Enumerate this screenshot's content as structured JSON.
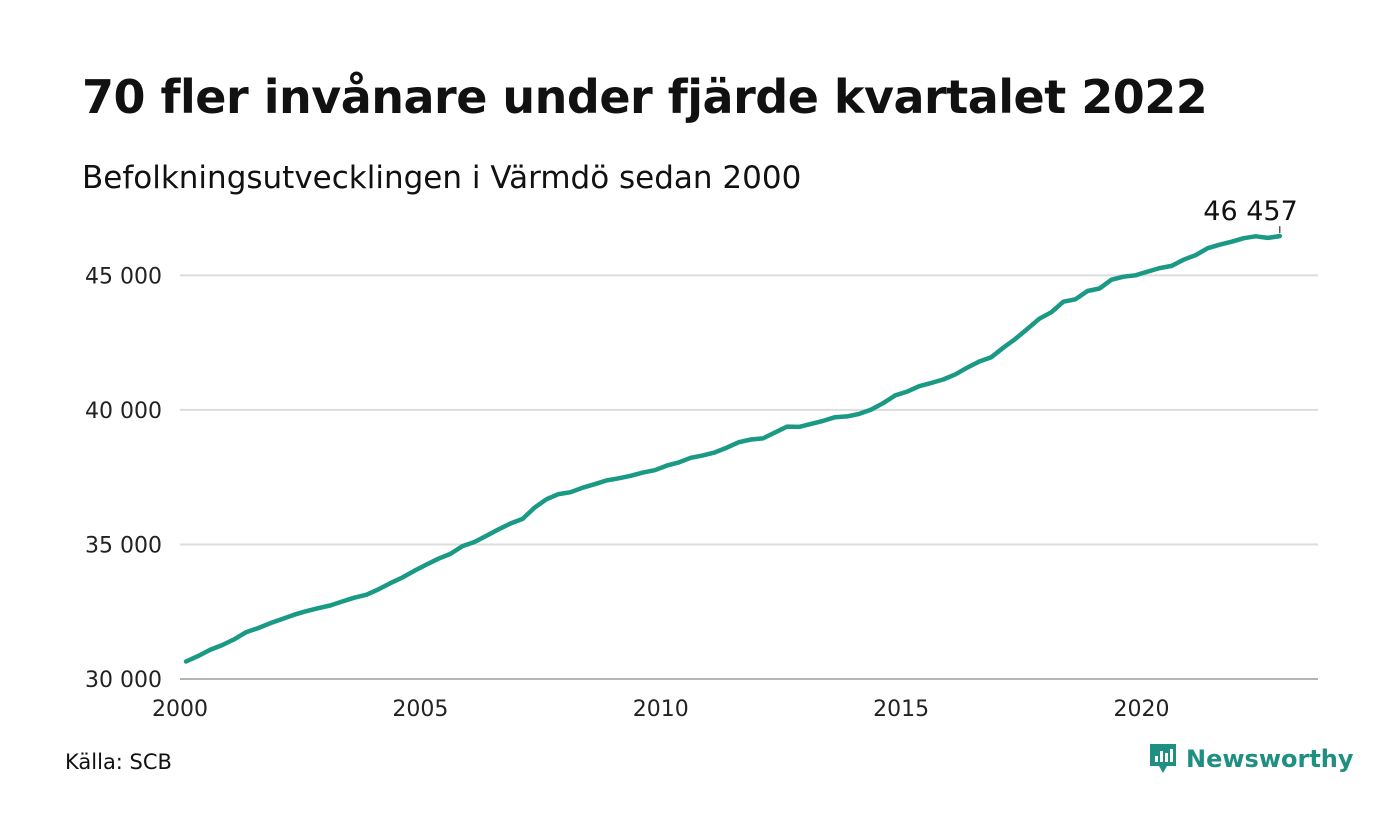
{
  "header": {
    "title": "70 fler invånare under fjärde kvartalet 2022",
    "subtitle": "Befolkningsutvecklingen i Värmdö sedan 2000"
  },
  "footer": {
    "source": "Källa: SCB",
    "brand_name": "Newsworthy",
    "brand_icon": "newsworthy-logo-icon",
    "brand_color": "#1f8f82"
  },
  "chart_data": {
    "type": "line",
    "line_color": "#1a9985",
    "grid": true,
    "ylim": [
      30000,
      46457
    ],
    "yticks": [
      30000,
      35000,
      40000,
      45000
    ],
    "ytick_labels": [
      "30 000",
      "35 000",
      "40 000",
      "45 000"
    ],
    "xticks": [
      2000,
      2005,
      2010,
      2015,
      2020
    ],
    "xtick_labels": [
      "2000",
      "2005",
      "2010",
      "2015",
      "2020"
    ],
    "end_label": "46 457",
    "series": [
      {
        "x": [
          "2000-Q1",
          "2000-Q2",
          "2000-Q3",
          "2000-Q4",
          "2001-Q1",
          "2001-Q2",
          "2001-Q3",
          "2001-Q4",
          "2002-Q1",
          "2002-Q2",
          "2002-Q3",
          "2002-Q4",
          "2003-Q1",
          "2003-Q2",
          "2003-Q3",
          "2003-Q4",
          "2004-Q1",
          "2004-Q2",
          "2004-Q3",
          "2004-Q4",
          "2005-Q1",
          "2005-Q2",
          "2005-Q3",
          "2005-Q4",
          "2006-Q1",
          "2006-Q2",
          "2006-Q3",
          "2006-Q4",
          "2007-Q1",
          "2007-Q2",
          "2007-Q3",
          "2007-Q4",
          "2008-Q1",
          "2008-Q2",
          "2008-Q3",
          "2008-Q4",
          "2009-Q1",
          "2009-Q2",
          "2009-Q3",
          "2009-Q4",
          "2010-Q1",
          "2010-Q2",
          "2010-Q3",
          "2010-Q4",
          "2011-Q1",
          "2011-Q2",
          "2011-Q3",
          "2011-Q4",
          "2012-Q1",
          "2012-Q2",
          "2012-Q3",
          "2012-Q4",
          "2013-Q1",
          "2013-Q2",
          "2013-Q3",
          "2013-Q4",
          "2014-Q1",
          "2014-Q2",
          "2014-Q3",
          "2014-Q4",
          "2015-Q1",
          "2015-Q2",
          "2015-Q3",
          "2015-Q4",
          "2016-Q1",
          "2016-Q2",
          "2016-Q3",
          "2016-Q4",
          "2017-Q1",
          "2017-Q2",
          "2017-Q3",
          "2017-Q4",
          "2018-Q1",
          "2018-Q2",
          "2018-Q3",
          "2018-Q4",
          "2019-Q1",
          "2019-Q2",
          "2019-Q3",
          "2019-Q4",
          "2020-Q1",
          "2020-Q2",
          "2020-Q3",
          "2020-Q4",
          "2021-Q1",
          "2021-Q2",
          "2021-Q3",
          "2021-Q4",
          "2022-Q1",
          "2022-Q2",
          "2022-Q3",
          "2022-Q4"
        ],
        "values": [
          30650,
          30850,
          31080,
          31260,
          31470,
          31740,
          31890,
          32070,
          32230,
          32390,
          32520,
          32630,
          32730,
          32880,
          33020,
          33130,
          33330,
          33560,
          33770,
          34020,
          34250,
          34470,
          34650,
          34940,
          35090,
          35320,
          35560,
          35780,
          35950,
          36370,
          36680,
          36870,
          36940,
          37110,
          37240,
          37380,
          37460,
          37550,
          37670,
          37760,
          37930,
          38050,
          38220,
          38310,
          38420,
          38600,
          38800,
          38900,
          38940,
          39160,
          39380,
          39370,
          39480,
          39590,
          39730,
          39760,
          39850,
          40010,
          40250,
          40540,
          40680,
          40880,
          41000,
          41130,
          41320,
          41570,
          41800,
          41960,
          42310,
          42640,
          43010,
          43390,
          43630,
          44020,
          44110,
          44420,
          44510,
          44840,
          44950,
          45000,
          45140,
          45270,
          45350,
          45580,
          45750,
          46010,
          46140,
          46250,
          46380,
          46450,
          46390,
          46457
        ]
      }
    ]
  }
}
